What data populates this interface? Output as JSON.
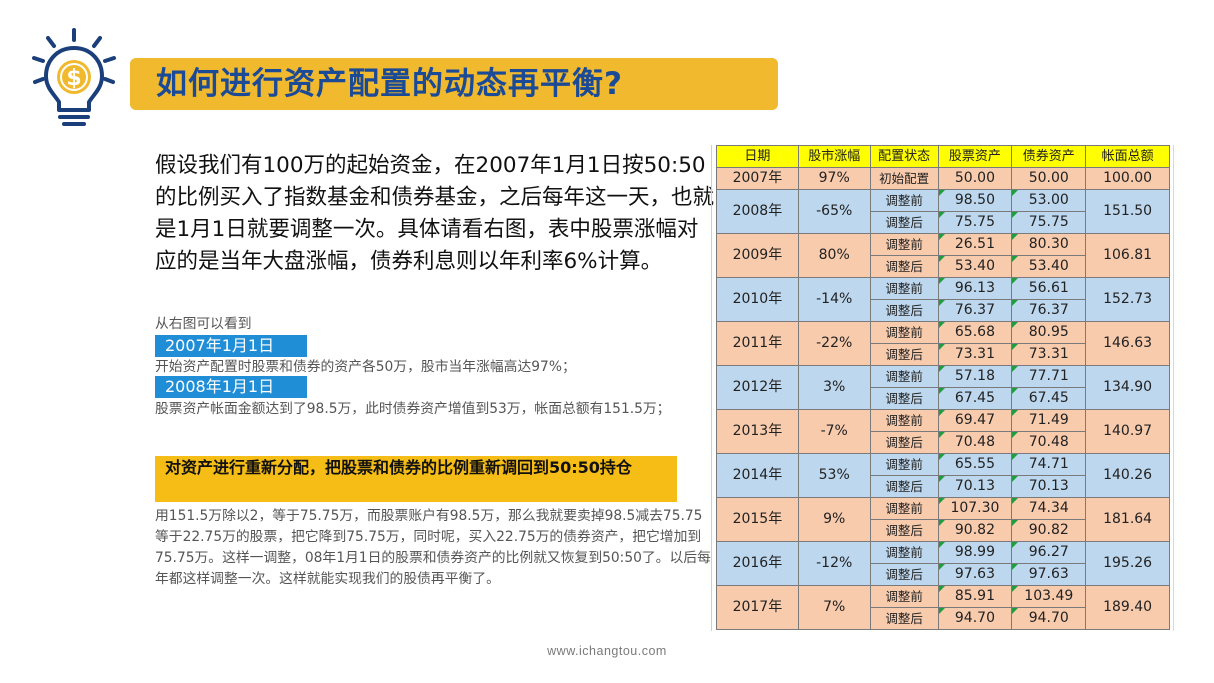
{
  "title": "如何进行资产配置的动态再平衡?",
  "intro": "假设我们有100万的起始资金，在2007年1月1日按50:50的比例买入了指数基金和债券基金，之后每年这一天，也就是1月1日就要调整一次。具体请看右图，表中股票涨幅对应的是当年大盘涨幅，债券利息则以年利率6%计算。",
  "notes": {
    "lead": "从右图可以看到",
    "tag1": "2007年1月1日",
    "text1": "开始资产配置时股票和债券的资产各50万，股市当年涨幅高达97%；",
    "tag2": "2008年1月1日",
    "text2": "股票资产帐面金额达到了98.5万，此时债券资产增值到53万，帐面总额有151.5万；",
    "highlight": "对资产进行重新分配，把股票和债券的比例重新调回到50:50持仓",
    "text3": "用151.5万除以2，等于75.75万，而股票账户有98.5万，那么我就要卖掉98.5减去75.75等于22.75万的股票，把它降到75.75万，同时呢，买入22.75万的债券资产，把它增加到75.75万。这样一调整，08年1月1日的股票和债券资产的比例就又恢复到50:50了。以后每年都这样调整一次。这样就能实现我们的股债再平衡了。"
  },
  "table": {
    "headers": [
      "日期",
      "股市涨幅",
      "配置状态",
      "股票资产",
      "债券资产",
      "帐面总额"
    ],
    "first": {
      "year": "2007年",
      "change": "97%",
      "state": "初始配置",
      "stock": "50.00",
      "bond": "50.00",
      "total": "100.00"
    },
    "rows": [
      {
        "year": "2008年",
        "change": "-65%",
        "pre": "调整前",
        "post": "调整后",
        "stock_pre": "98.50",
        "bond_pre": "53.00",
        "stock_post": "75.75",
        "bond_post": "75.75",
        "total": "151.50"
      },
      {
        "year": "2009年",
        "change": "80%",
        "pre": "调整前",
        "post": "调整后",
        "stock_pre": "26.51",
        "bond_pre": "80.30",
        "stock_post": "53.40",
        "bond_post": "53.40",
        "total": "106.81"
      },
      {
        "year": "2010年",
        "change": "-14%",
        "pre": "调整前",
        "post": "调整后",
        "stock_pre": "96.13",
        "bond_pre": "56.61",
        "stock_post": "76.37",
        "bond_post": "76.37",
        "total": "152.73"
      },
      {
        "year": "2011年",
        "change": "-22%",
        "pre": "调整前",
        "post": "调整后",
        "stock_pre": "65.68",
        "bond_pre": "80.95",
        "stock_post": "73.31",
        "bond_post": "73.31",
        "total": "146.63"
      },
      {
        "year": "2012年",
        "change": "3%",
        "pre": "调整前",
        "post": "调整后",
        "stock_pre": "57.18",
        "bond_pre": "77.71",
        "stock_post": "67.45",
        "bond_post": "67.45",
        "total": "134.90"
      },
      {
        "year": "2013年",
        "change": "-7%",
        "pre": "调整前",
        "post": "调整后",
        "stock_pre": "69.47",
        "bond_pre": "71.49",
        "stock_post": "70.48",
        "bond_post": "70.48",
        "total": "140.97"
      },
      {
        "year": "2014年",
        "change": "53%",
        "pre": "调整前",
        "post": "调整后",
        "stock_pre": "65.55",
        "bond_pre": "74.71",
        "stock_post": "70.13",
        "bond_post": "70.13",
        "total": "140.26"
      },
      {
        "year": "2015年",
        "change": "9%",
        "pre": "调整前",
        "post": "调整后",
        "stock_pre": "107.30",
        "bond_pre": "74.34",
        "stock_post": "90.82",
        "bond_post": "90.82",
        "total": "181.64"
      },
      {
        "year": "2016年",
        "change": "-12%",
        "pre": "调整前",
        "post": "调整后",
        "stock_pre": "98.99",
        "bond_pre": "96.27",
        "stock_post": "97.63",
        "bond_post": "97.63",
        "total": "195.26"
      },
      {
        "year": "2017年",
        "change": "7%",
        "pre": "调整前",
        "post": "调整后",
        "stock_pre": "85.91",
        "bond_pre": "103.49",
        "stock_post": "94.70",
        "bond_post": "94.70",
        "total": "189.40"
      }
    ]
  },
  "footer": "www.ichangtou.com",
  "colors": {
    "title_bar": "#f0b92e",
    "title_text": "#1b4a96",
    "tag_blue": "#1f8ed6",
    "highlight_yellow": "#f5bd16",
    "row_orange": "#f8cbad",
    "row_blue": "#bdd7ee",
    "header_yellow": "#ffff00"
  },
  "icons": {
    "header": "lightbulb-dollar-icon"
  }
}
